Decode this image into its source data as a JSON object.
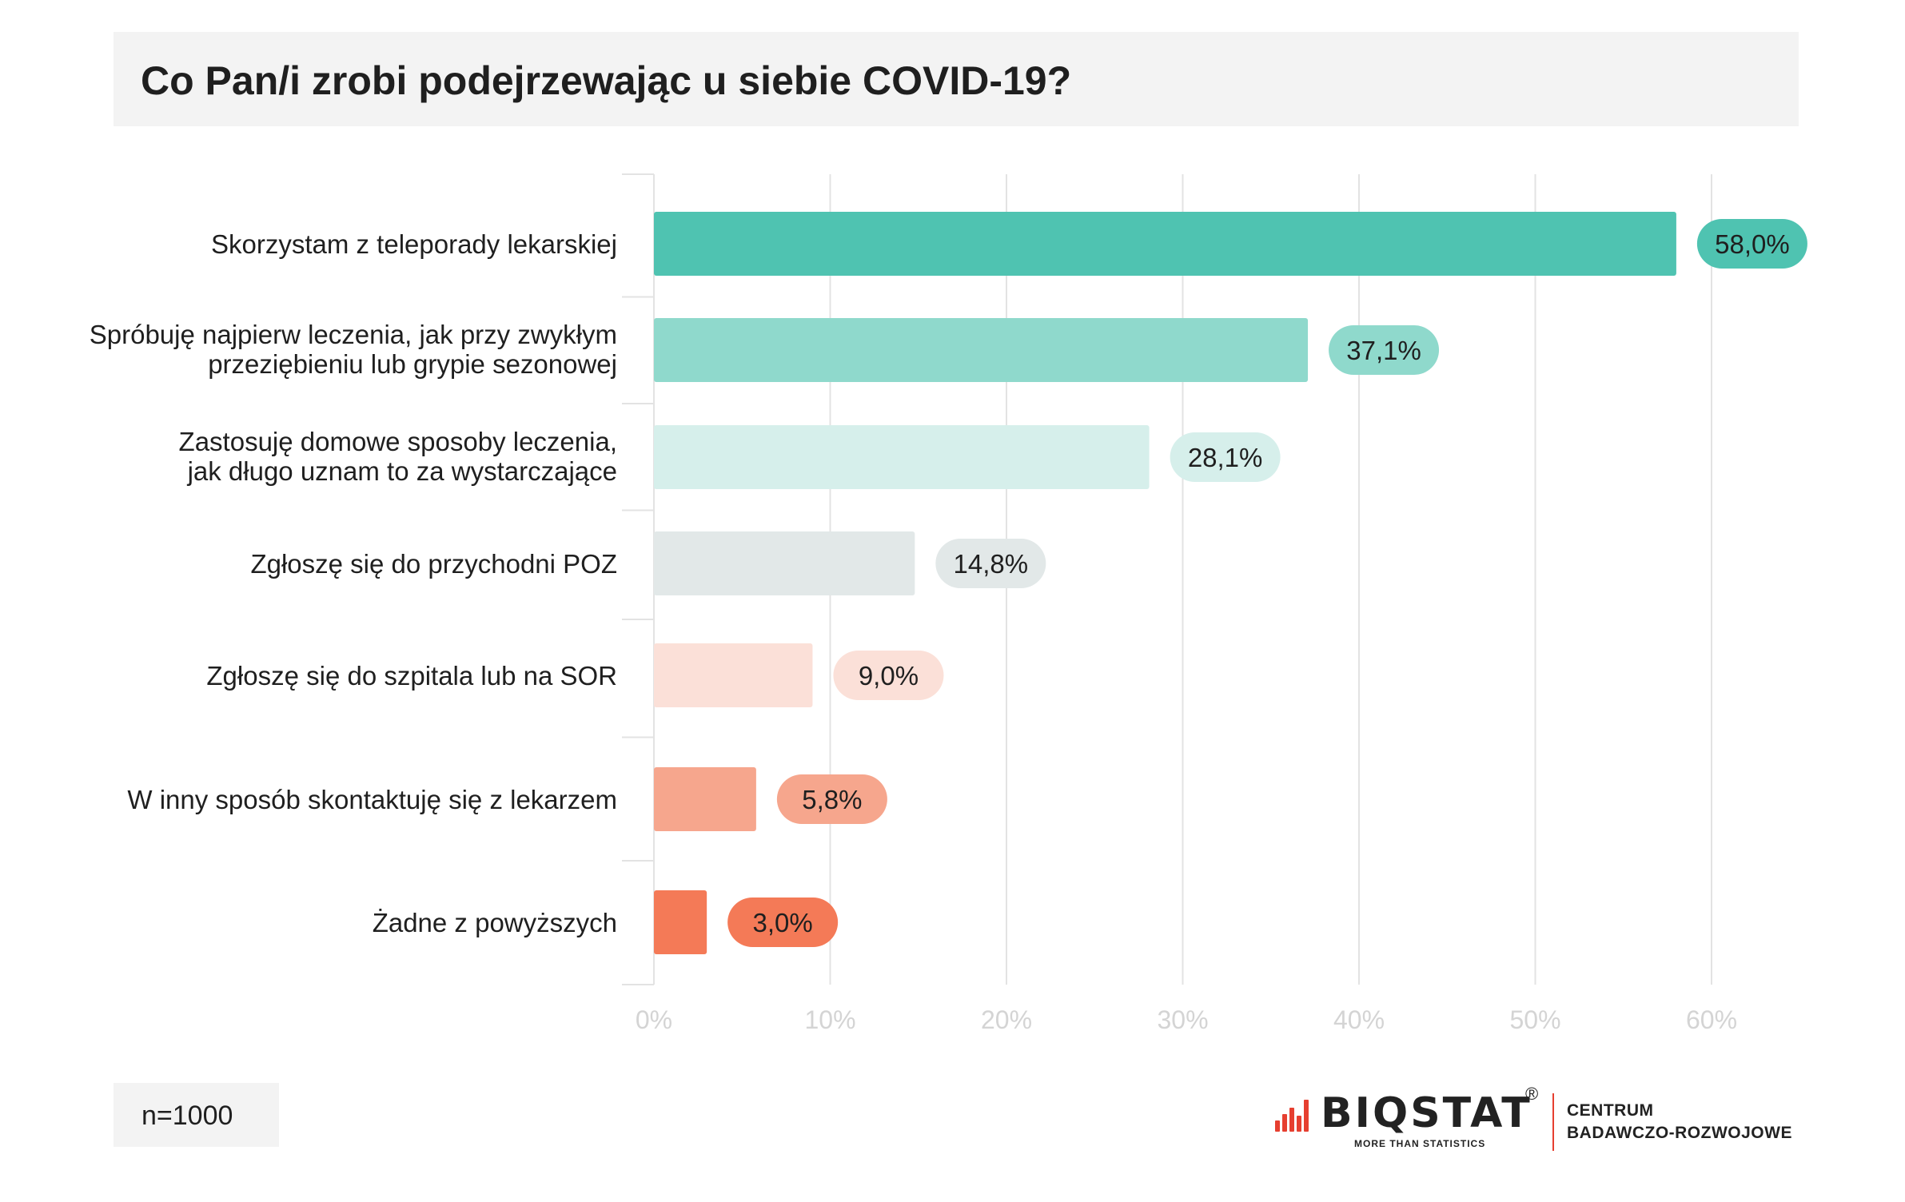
{
  "chart_data": {
    "type": "bar",
    "orientation": "horizontal",
    "title": "Co Pan/i zrobi podejrzewając u siebie COVID-19?",
    "xlabel": "",
    "ylabel": "",
    "xlim": [
      0,
      60
    ],
    "grid": true,
    "legend": "none",
    "x_ticks": [
      "0%",
      "10%",
      "20%",
      "30%",
      "40%",
      "50%",
      "60%"
    ],
    "categories": [
      [
        "Skorzystam z teleporady lekarskiej"
      ],
      [
        "Spróbuję najpierw leczenia, jak przy zwykłym",
        "przeziębieniu lub grypie sezonowej"
      ],
      [
        "Zastosuję domowe sposoby leczenia,",
        "jak długo uznam to za wystarczające"
      ],
      [
        "Zgłoszę się do przychodni POZ"
      ],
      [
        "Zgłoszę się do szpitala lub na SOR"
      ],
      [
        "W inny sposób skontaktuję się z lekarzem"
      ],
      [
        "Żadne z powyższych"
      ]
    ],
    "values": [
      58.0,
      37.1,
      28.1,
      14.8,
      9.0,
      5.8,
      3.0
    ],
    "value_labels": [
      "58,0%",
      "37,1%",
      "28,1%",
      "14,8%",
      "9,0%",
      "5,8%",
      "3,0%"
    ],
    "colors": [
      "#4fc3b1",
      "#8fd9cc",
      "#d6efeb",
      "#e2e8e8",
      "#fbe0d8",
      "#f6a68d",
      "#f47a57"
    ]
  },
  "footnote": "n=1000",
  "logo": {
    "brand": "BIQSTAT",
    "registered": "®",
    "tagline": "MORE THAN STATISTICS",
    "center_line1": "CENTRUM",
    "center_line2": "BADAWCZO-ROZWOJOWE",
    "accent_color": "#e63f30"
  }
}
